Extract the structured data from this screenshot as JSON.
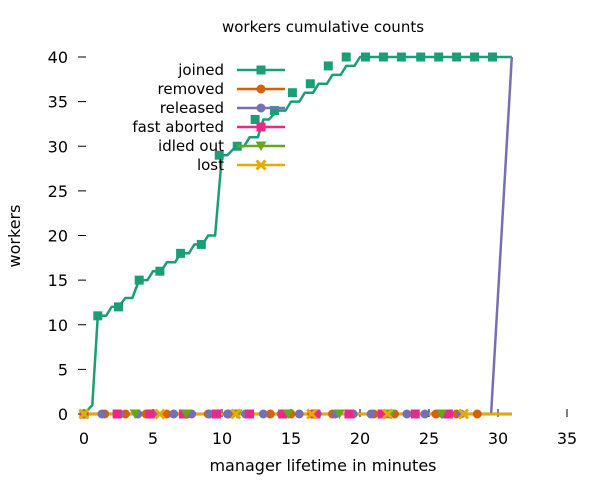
{
  "chart_data": {
    "type": "line",
    "title": "workers cumulative counts",
    "xlabel": "manager lifetime in minutes",
    "ylabel": "workers",
    "xlim": [
      0,
      35
    ],
    "ylim": [
      0,
      40
    ],
    "xticks": [
      0,
      5,
      10,
      15,
      20,
      25,
      30,
      35
    ],
    "yticks": [
      0,
      5,
      10,
      15,
      20,
      25,
      30,
      35,
      40
    ],
    "grid": false,
    "legend_position": "top-left",
    "series": [
      {
        "name": "joined",
        "color": "#1b9e77",
        "marker": "square",
        "x": [
          0,
          0.6,
          1.0,
          1.6,
          2.0,
          2.5,
          3.0,
          3.5,
          4.0,
          4.6,
          5.0,
          5.6,
          6.0,
          6.6,
          7.0,
          7.6,
          8.0,
          8.6,
          9.0,
          9.5,
          10.0,
          10.4,
          11.0,
          11.6,
          12.0,
          12.6,
          13.0,
          13.4,
          14.0,
          14.6,
          15.0,
          15.6,
          16.0,
          16.6,
          17.0,
          17.6,
          18.0,
          18.6,
          19.0,
          19.6,
          20.0,
          20.6,
          21.0,
          31.0
        ],
        "y": [
          0,
          1,
          11,
          11,
          12,
          12,
          13,
          13,
          15,
          15,
          16,
          16,
          17,
          17,
          18,
          18,
          19,
          19,
          20,
          20,
          29,
          29,
          30,
          30,
          31,
          31,
          33,
          33,
          34,
          34,
          35,
          35,
          36,
          36,
          37,
          37,
          38,
          38,
          39,
          39,
          40,
          40,
          40,
          40
        ],
        "marker_x": [
          0,
          1.0,
          2.5,
          4.0,
          5.5,
          7.0,
          8.5,
          9.8,
          11.1,
          12.4,
          13.8,
          15.1,
          16.4,
          17.7,
          19.0,
          20.4,
          21.7,
          23.0,
          24.4,
          25.7,
          27.0,
          28.3,
          29.6
        ],
        "marker_y": [
          0,
          11,
          12,
          15,
          16,
          18,
          19,
          29,
          30,
          33,
          34,
          36,
          37,
          39,
          40,
          40,
          40,
          40,
          40,
          40,
          40,
          40,
          40
        ]
      },
      {
        "name": "removed",
        "color": "#d95f02",
        "marker": "circle",
        "x": [
          0,
          31.0
        ],
        "y": [
          0,
          0
        ],
        "marker_x": [
          0,
          1.5,
          3.0,
          4.5,
          6.0,
          7.5,
          9.0,
          10.5,
          12.0,
          13.5,
          15.0,
          16.5,
          18.0,
          19.5,
          21.0,
          22.5,
          24.0,
          25.5,
          27.0,
          28.5
        ],
        "marker_y": [
          0,
          0,
          0,
          0,
          0,
          0,
          0,
          0,
          0,
          0,
          0,
          0,
          0,
          0,
          0,
          0,
          0,
          0,
          0,
          0
        ]
      },
      {
        "name": "released",
        "color": "#7570b3",
        "marker": "circle",
        "x": [
          0,
          29.5,
          31.0
        ],
        "y": [
          0,
          0,
          40
        ],
        "marker_x": [
          0,
          1.3,
          2.6,
          3.9,
          5.2,
          6.5,
          7.8,
          9.1,
          10.4,
          11.7,
          13.0,
          14.3,
          15.6,
          16.9,
          18.2,
          19.5,
          20.8,
          22.1,
          23.4,
          24.7,
          26.0,
          27.3
        ],
        "marker_y": [
          0,
          0,
          0,
          0,
          0,
          0,
          0,
          0,
          0,
          0,
          0,
          0,
          0,
          0,
          0,
          0,
          0,
          0,
          0,
          0,
          0,
          0
        ]
      },
      {
        "name": "fast aborted",
        "color": "#e7298a",
        "marker": "square",
        "x": [
          0,
          31.0
        ],
        "y": [
          0,
          0
        ],
        "marker_x": [
          0,
          2.4,
          4.8,
          7.2,
          9.6,
          12.0,
          14.4,
          16.8,
          19.2,
          21.6,
          24.0,
          26.4
        ],
        "marker_y": [
          0,
          0,
          0,
          0,
          0,
          0,
          0,
          0,
          0,
          0,
          0,
          0
        ]
      },
      {
        "name": "idled out",
        "color": "#66a61e",
        "marker": "triangle-down",
        "x": [
          0,
          31.0
        ],
        "y": [
          0,
          0
        ],
        "marker_x": [
          0,
          3.7,
          7.4,
          11.1,
          14.8,
          18.5,
          22.2,
          25.9
        ],
        "marker_y": [
          0,
          0,
          0,
          0,
          0,
          0,
          0,
          0
        ]
      },
      {
        "name": "lost",
        "color": "#e6ab02",
        "marker": "cross",
        "x": [
          0,
          31.0
        ],
        "y": [
          0,
          0
        ],
        "marker_x": [
          0,
          5.5,
          11.0,
          16.5,
          22.0,
          27.5
        ],
        "marker_y": [
          0,
          0,
          0,
          0,
          0,
          0
        ]
      }
    ]
  }
}
